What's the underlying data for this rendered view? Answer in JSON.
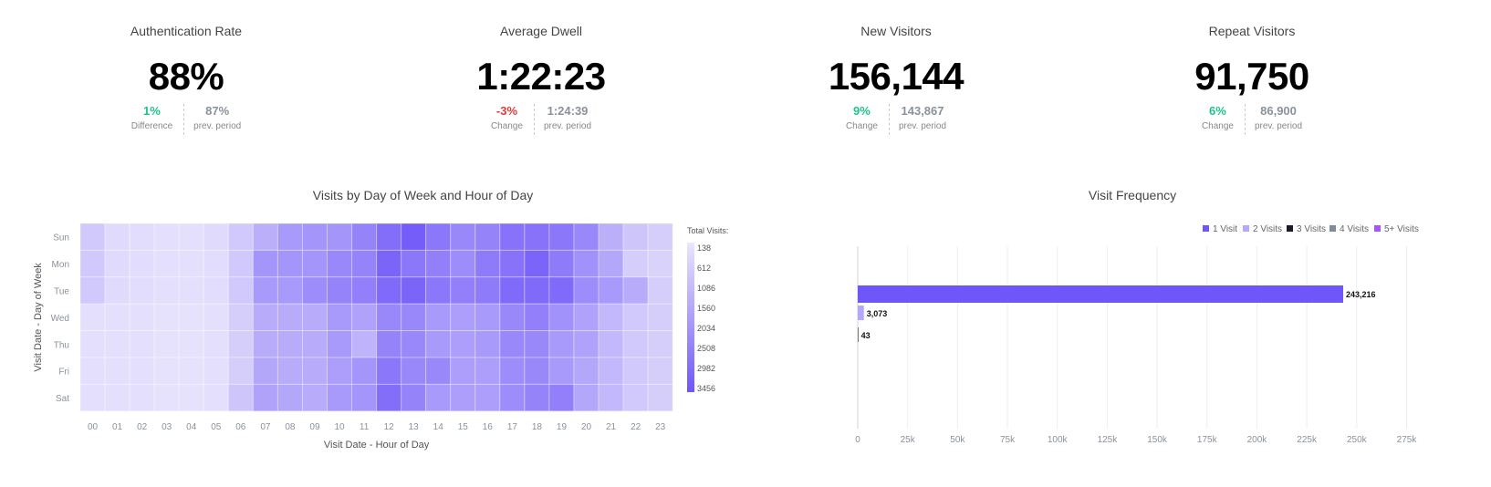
{
  "kpis": [
    {
      "title": "Authentication Rate",
      "value": "88%",
      "change": "1%",
      "change_type": "positive",
      "change_label": "Difference",
      "prev": "87%",
      "prev_label": "prev. period"
    },
    {
      "title": "Average Dwell",
      "value": "1:22:23",
      "change": "-3%",
      "change_type": "negative",
      "change_label": "Change",
      "prev": "1:24:39",
      "prev_label": "prev. period"
    },
    {
      "title": "New Visitors",
      "value": "156,144",
      "change": "9%",
      "change_type": "positive",
      "change_label": "Change",
      "prev": "143,867",
      "prev_label": "prev. period"
    },
    {
      "title": "Repeat Visitors",
      "value": "91,750",
      "change": "6%",
      "change_type": "positive",
      "change_label": "Change",
      "prev": "86,900",
      "prev_label": "prev. period"
    }
  ],
  "colors": {
    "positive": "#1fc28a",
    "negative": "#e53935",
    "accent": "#6e56f8"
  },
  "heatmap": {
    "title": "Visits by Day of Week and Hour of Day",
    "xlabel": "Visit Date - Hour of Day",
    "ylabel": "Visit Date - Day of Week",
    "legend_title": "Total Visits:",
    "legend_ticks": [
      "138",
      "612",
      "1086",
      "1560",
      "2034",
      "2508",
      "2982",
      "3456"
    ]
  },
  "frequency": {
    "title": "Visit Frequency",
    "legend": [
      {
        "label": "1 Visit",
        "color": "#6e56f8"
      },
      {
        "label": "2 Visits",
        "color": "#b5a8fb"
      },
      {
        "label": "3 Visits",
        "color": "#1a1a2e"
      },
      {
        "label": "4 Visits",
        "color": "#7f8b9c"
      },
      {
        "label": "5+ Visits",
        "color": "#a855f7"
      }
    ],
    "bar_labels": [
      "243,216",
      "3,073",
      "43"
    ],
    "xticks": [
      "0",
      "25k",
      "50k",
      "75k",
      "100k",
      "125k",
      "150k",
      "175k",
      "200k",
      "225k",
      "250k",
      "275k"
    ]
  },
  "chart_data": [
    {
      "type": "heatmap",
      "title": "Visits by Day of Week and Hour of Day",
      "xlabel": "Visit Date - Hour of Day",
      "ylabel": "Visit Date - Day of Week",
      "x": [
        "00",
        "01",
        "02",
        "03",
        "04",
        "05",
        "06",
        "07",
        "08",
        "09",
        "10",
        "11",
        "12",
        "13",
        "14",
        "15",
        "16",
        "17",
        "18",
        "19",
        "20",
        "21",
        "22",
        "23"
      ],
      "y": [
        "Sun",
        "Mon",
        "Tue",
        "Wed",
        "Thu",
        "Fri",
        "Sat"
      ],
      "zlim": [
        138,
        3456
      ],
      "values": [
        [
          800,
          400,
          350,
          300,
          300,
          400,
          800,
          1400,
          1900,
          2000,
          2000,
          2400,
          2900,
          3300,
          2700,
          2300,
          2400,
          2800,
          2800,
          2700,
          2300,
          1400,
          900,
          700
        ],
        [
          800,
          400,
          350,
          300,
          300,
          350,
          800,
          2000,
          2000,
          2000,
          2300,
          2400,
          3100,
          2700,
          2500,
          2200,
          2600,
          2800,
          3100,
          2600,
          2100,
          1600,
          700,
          600
        ],
        [
          800,
          400,
          350,
          300,
          300,
          350,
          800,
          1900,
          1900,
          2200,
          2400,
          2500,
          3000,
          3100,
          2700,
          2500,
          2600,
          3000,
          3000,
          3000,
          2200,
          1900,
          1500,
          700
        ],
        [
          300,
          300,
          300,
          250,
          250,
          300,
          700,
          1500,
          1500,
          1500,
          1900,
          1700,
          2300,
          2300,
          1900,
          1800,
          1900,
          2300,
          2500,
          2100,
          1700,
          1200,
          800,
          700
        ],
        [
          300,
          300,
          300,
          250,
          250,
          300,
          700,
          1500,
          1500,
          1500,
          1900,
          1300,
          2400,
          2300,
          1900,
          1800,
          1900,
          2300,
          2300,
          1900,
          1700,
          1200,
          800,
          700
        ],
        [
          300,
          300,
          300,
          250,
          250,
          300,
          700,
          1600,
          1500,
          1500,
          1800,
          2000,
          2700,
          2300,
          2300,
          1800,
          1800,
          2200,
          2300,
          1900,
          1600,
          1200,
          800,
          700
        ],
        [
          300,
          300,
          300,
          250,
          250,
          300,
          900,
          1700,
          1600,
          1500,
          1900,
          2000,
          2900,
          2400,
          1900,
          1800,
          1800,
          2200,
          2400,
          2500,
          1600,
          1200,
          800,
          700
        ]
      ]
    },
    {
      "type": "bar",
      "orientation": "horizontal",
      "title": "Visit Frequency",
      "categories": [
        "1 Visit",
        "2 Visits",
        "3 Visits",
        "4 Visits",
        "5+ Visits"
      ],
      "values": [
        243216,
        3073,
        43,
        0,
        0
      ],
      "xlim": [
        0,
        275000
      ],
      "legend": "top-right"
    }
  ]
}
